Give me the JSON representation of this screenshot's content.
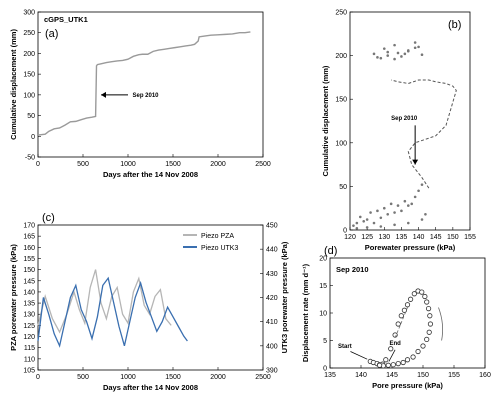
{
  "chart_data": [
    {
      "id": "a",
      "type": "line",
      "panel_label": "(a)",
      "title": "cGPS_UTK1",
      "xlabel": "Days after the 14 Nov 2008",
      "ylabel": "Cumulative displacement (mm)",
      "xlim": [
        0,
        2500
      ],
      "ylim": [
        -50,
        300
      ],
      "xticks": [
        0,
        500,
        1000,
        1500,
        2000,
        2500
      ],
      "yticks": [
        -50,
        0,
        50,
        100,
        150,
        200,
        250,
        300
      ],
      "annotation": "Sep 2010",
      "series": [
        {
          "color": "#9a9a9a",
          "x": [
            0,
            80,
            120,
            180,
            240,
            300,
            360,
            420,
            480,
            540,
            600,
            640,
            650,
            660,
            700,
            760,
            820,
            880,
            940,
            1000,
            1060,
            1120,
            1160,
            1220,
            1280,
            1340,
            1400,
            1460,
            1520,
            1580,
            1640,
            1700,
            1740,
            1780,
            1790,
            1850,
            1920,
            2000,
            2080,
            2160,
            2240,
            2300,
            2360
          ],
          "y": [
            3,
            5,
            12,
            18,
            20,
            27,
            35,
            36,
            40,
            44,
            46,
            48,
            170,
            173,
            175,
            178,
            180,
            182,
            183,
            186,
            193,
            197,
            198,
            198,
            205,
            208,
            210,
            212,
            214,
            216,
            218,
            220,
            222,
            230,
            240,
            242,
            244,
            245,
            246,
            247,
            250,
            250,
            252
          ]
        }
      ]
    },
    {
      "id": "b",
      "type": "scatter",
      "panel_label": "(b)",
      "xlabel": "Porewater pressure (kPa)",
      "ylabel": "Cumulative displacement (mm)",
      "xlim": [
        120,
        155
      ],
      "ylim": [
        0,
        250
      ],
      "xticks": [
        120,
        125,
        130,
        135,
        140,
        145,
        150,
        155
      ],
      "yticks": [
        0,
        50,
        100,
        150,
        200,
        250
      ],
      "annotation": "Sep 2010",
      "series": [
        {
          "name": "points",
          "color": "#777777",
          "x": [
            121,
            122,
            124,
            125,
            127,
            129,
            131,
            133,
            135,
            137,
            138,
            123,
            126,
            128,
            130,
            132,
            134,
            136,
            139,
            140,
            141,
            122,
            125,
            129,
            133,
            137,
            141,
            142,
            128,
            131,
            134,
            137,
            140,
            127,
            129,
            131,
            133,
            135,
            137,
            139,
            141,
            130,
            133,
            136,
            139
          ],
          "y": [
            5,
            8,
            10,
            12,
            8,
            14,
            18,
            20,
            22,
            28,
            30,
            15,
            20,
            22,
            25,
            30,
            28,
            33,
            38,
            45,
            52,
            2,
            3,
            4,
            6,
            8,
            12,
            18,
            198,
            200,
            203,
            205,
            210,
            202,
            197,
            204,
            212,
            199,
            206,
            215,
            201,
            208,
            196,
            202,
            209
          ]
        },
        {
          "name": "path",
          "color": "#555555",
          "x": [
            143,
            141,
            138,
            137,
            139,
            142,
            145,
            148,
            151,
            150,
            148,
            145,
            143,
            140,
            137,
            134,
            132
          ],
          "y": [
            48,
            60,
            75,
            90,
            100,
            104,
            108,
            120,
            160,
            165,
            168,
            170,
            172,
            172,
            168,
            170,
            172
          ]
        }
      ]
    },
    {
      "id": "c",
      "type": "line",
      "panel_label": "(c)",
      "xlabel": "Days after the 14 Nov 2008",
      "ylabel": "PZA porewater pressure (kPa)",
      "y2label": "UTK3 porewater pressure (kPa)",
      "xlim": [
        0,
        2500
      ],
      "ylim": [
        105,
        170
      ],
      "y2lim": [
        390,
        450
      ],
      "xticks": [
        0,
        500,
        1000,
        1500,
        2000,
        2500
      ],
      "yticks": [
        105,
        110,
        115,
        120,
        125,
        130,
        135,
        140,
        145,
        150,
        155,
        160,
        165,
        170
      ],
      "y2ticks": [
        390,
        400,
        410,
        420,
        430,
        440,
        450
      ],
      "legend": "top-right",
      "series": [
        {
          "name": "Piezo PZA",
          "color": "#b5b5b5",
          "x": [
            0,
            80,
            160,
            240,
            320,
            400,
            460,
            520,
            580,
            640,
            700,
            760,
            820,
            880,
            940,
            1000,
            1060,
            1120,
            1180,
            1240,
            1300,
            1360,
            1420,
            1480
          ],
          "y": [
            125,
            138,
            128,
            122,
            130,
            140,
            132,
            126,
            142,
            150,
            135,
            128,
            138,
            142,
            130,
            126,
            140,
            146,
            134,
            130,
            138,
            141,
            128,
            125
          ]
        },
        {
          "name": "Piezo UTK3",
          "color": "#3a6fb0",
          "x": [
            0,
            60,
            120,
            180,
            240,
            300,
            360,
            420,
            480,
            540,
            600,
            660,
            720,
            780,
            840,
            900,
            960,
            1020,
            1080,
            1140,
            1200,
            1260,
            1320,
            1380,
            1440,
            1500,
            1560,
            1620,
            1660
          ],
          "y": [
            402,
            420,
            413,
            405,
            400,
            410,
            420,
            425,
            415,
            410,
            403,
            412,
            425,
            428,
            418,
            408,
            400,
            410,
            420,
            426,
            418,
            412,
            406,
            410,
            416,
            412,
            408,
            404,
            402
          ]
        }
      ]
    },
    {
      "id": "d",
      "type": "scatter",
      "panel_label": "(d)",
      "title": "Sep 2010",
      "xlabel": "Pore pressure (kPa)",
      "ylabel": "Displacement rate (mm d⁻¹)",
      "xlim": [
        135,
        160
      ],
      "ylim": [
        0,
        20
      ],
      "xticks": [
        135,
        140,
        145,
        150,
        155,
        160
      ],
      "yticks": [
        0,
        5,
        10,
        15,
        20
      ],
      "annotations": [
        "Start",
        "End"
      ],
      "series": [
        {
          "color": "#333333",
          "x": [
            141.5,
            142.0,
            142.6,
            143.0,
            143.5,
            144.0,
            144.8,
            145.5,
            146.0,
            146.5,
            147.0,
            147.5,
            148.0,
            148.6,
            149.2,
            149.8,
            150.3,
            150.6,
            150.9,
            151.1,
            151.2,
            151.0,
            150.6,
            150.0,
            149.2,
            148.4,
            147.5,
            146.8,
            146.0,
            145.2,
            144.4,
            143.6,
            143.0
          ],
          "y": [
            1.2,
            1.0,
            0.8,
            0.6,
            0.7,
            1.5,
            3.5,
            6.0,
            8.0,
            9.5,
            10.5,
            11.5,
            12.5,
            13.5,
            14.0,
            13.8,
            13.0,
            12.0,
            10.8,
            9.5,
            8.0,
            6.5,
            5.2,
            4.0,
            3.0,
            2.0,
            1.5,
            1.0,
            0.8,
            0.6,
            0.5,
            0.4,
            0.5
          ]
        }
      ]
    }
  ]
}
